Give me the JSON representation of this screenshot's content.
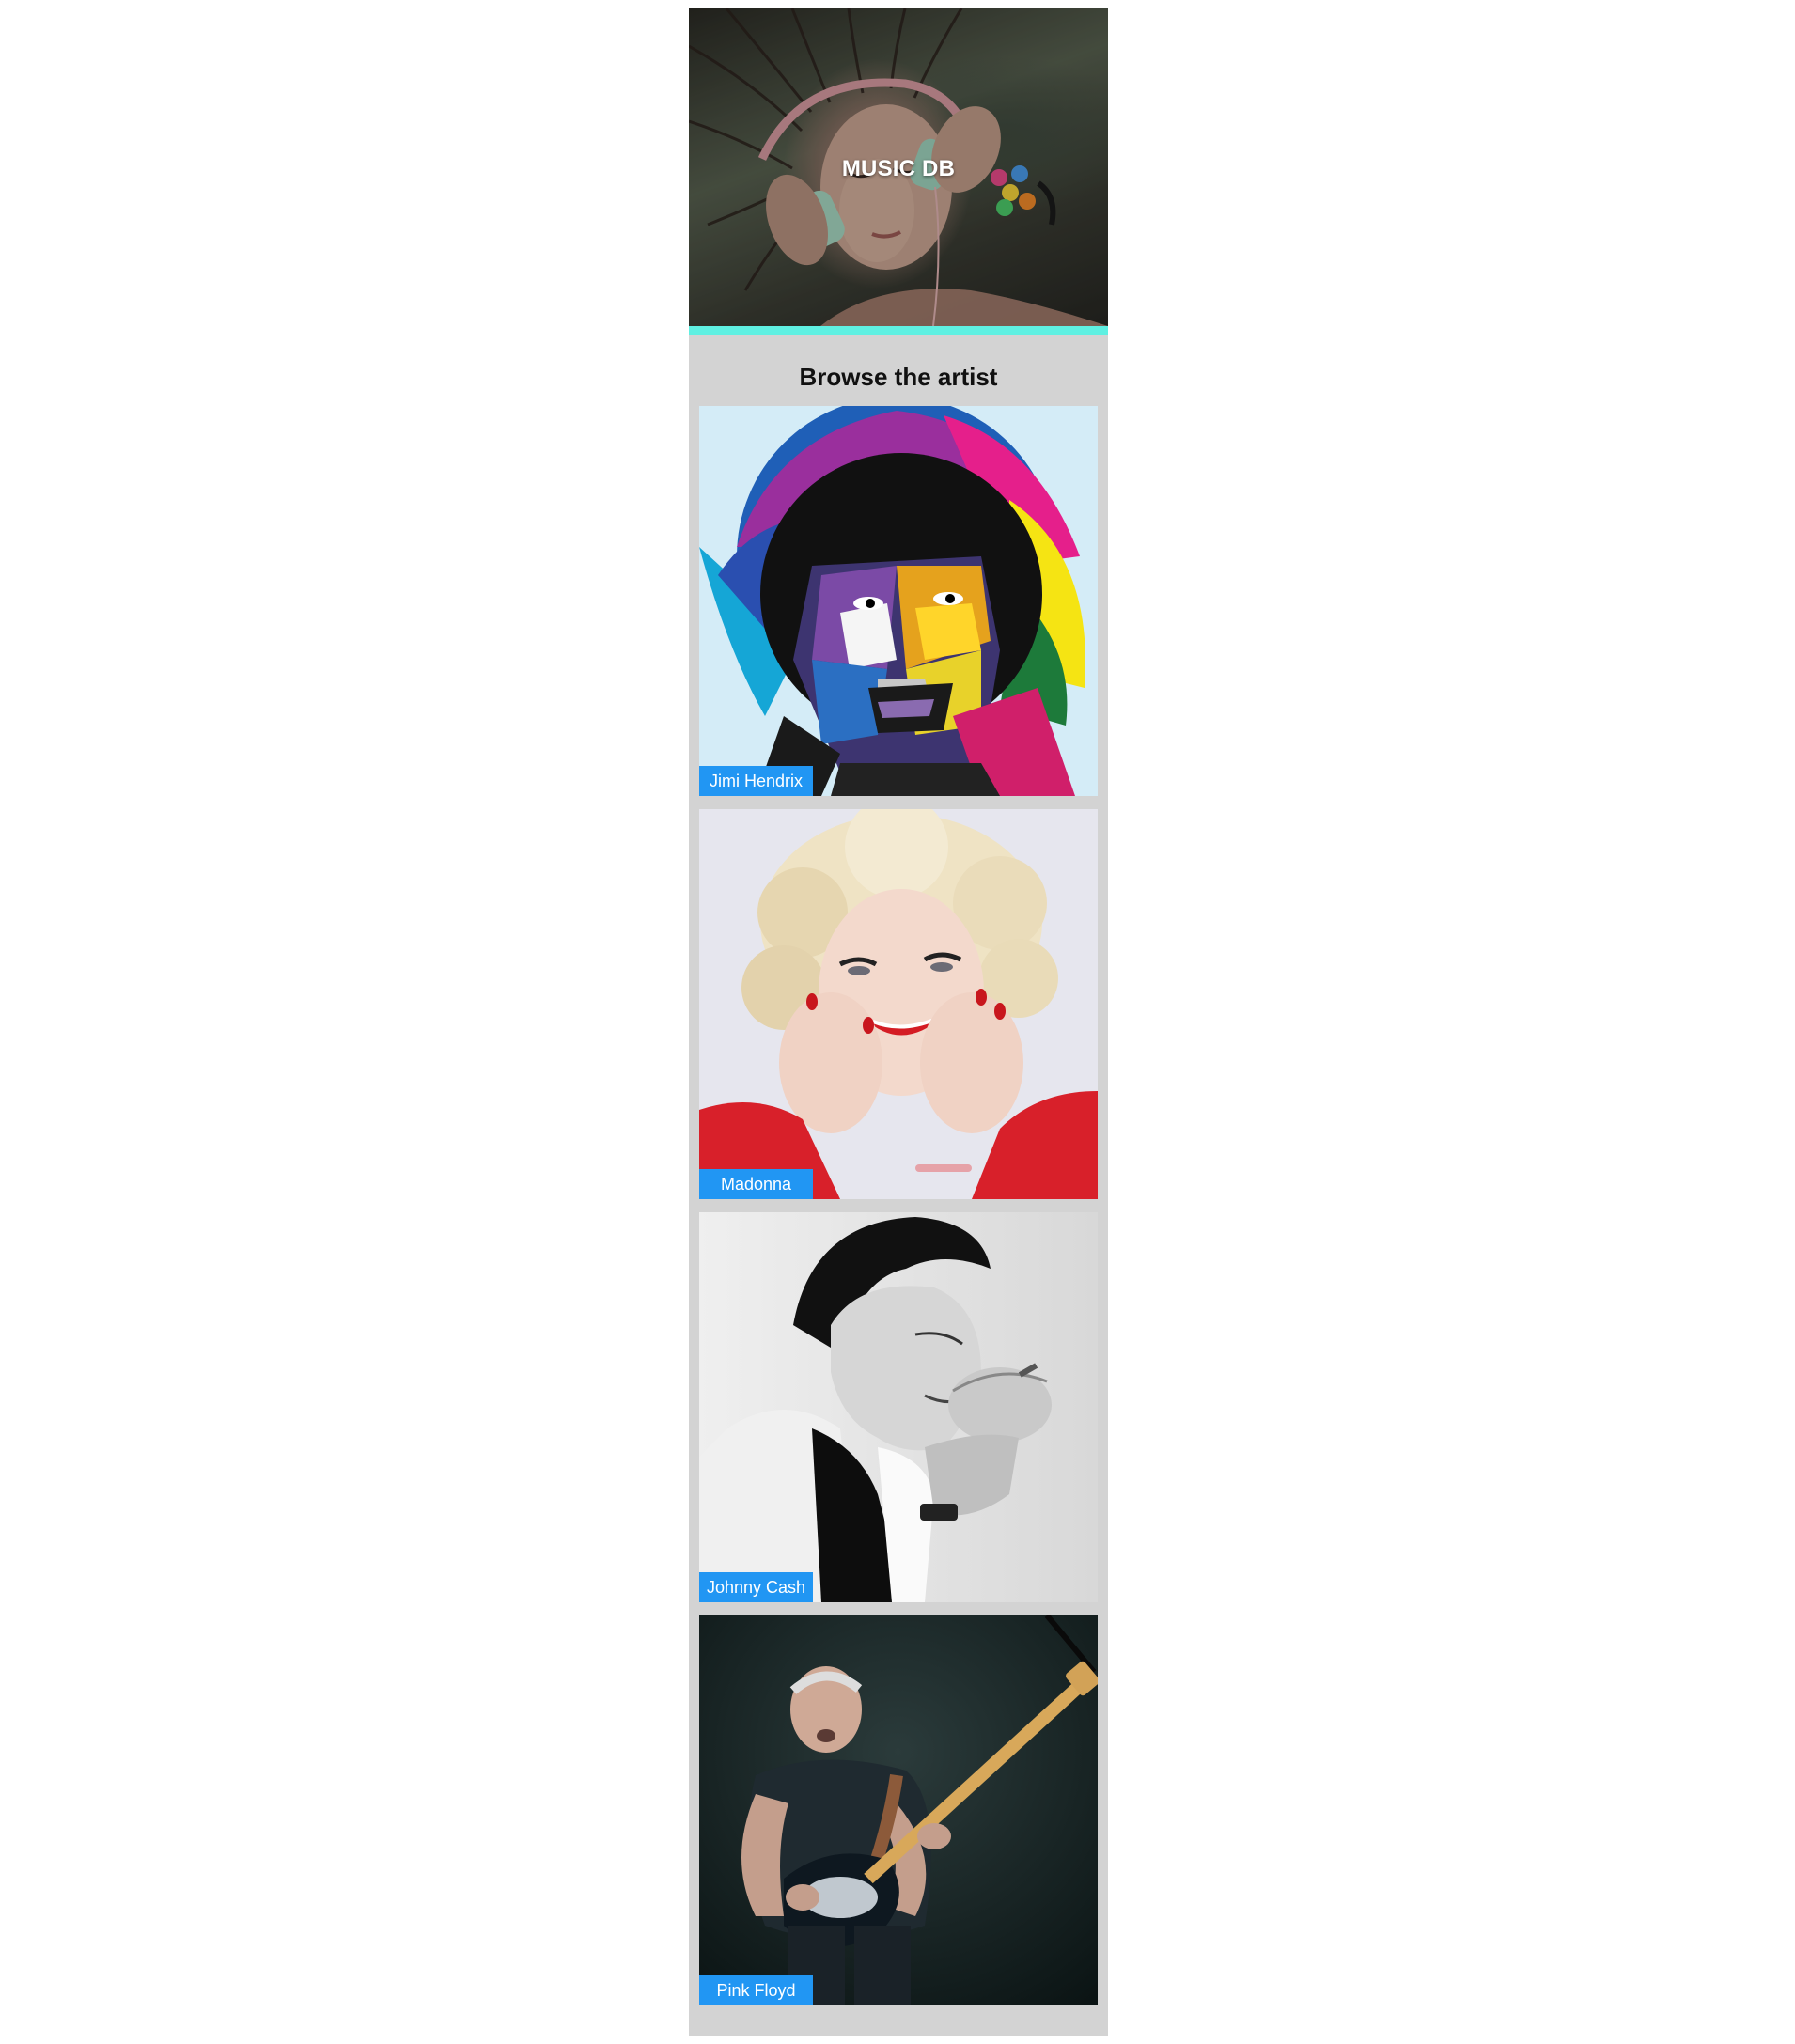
{
  "header": {
    "title": "MUSIC DB",
    "accent_color": "#5ff0e2",
    "image": "girl-with-headphones-photo"
  },
  "browse": {
    "heading": "Browse the artist",
    "label_color": "#2196f3",
    "artists": [
      {
        "name": "Jimi Hendrix",
        "image": "jimi-hendrix-pop-art-portrait"
      },
      {
        "name": "Madonna",
        "image": "madonna-portrait-photo"
      },
      {
        "name": "Johnny Cash",
        "image": "johnny-cash-bw-photo"
      },
      {
        "name": "Pink Floyd",
        "image": "pink-floyd-guitarist-photo"
      }
    ]
  }
}
